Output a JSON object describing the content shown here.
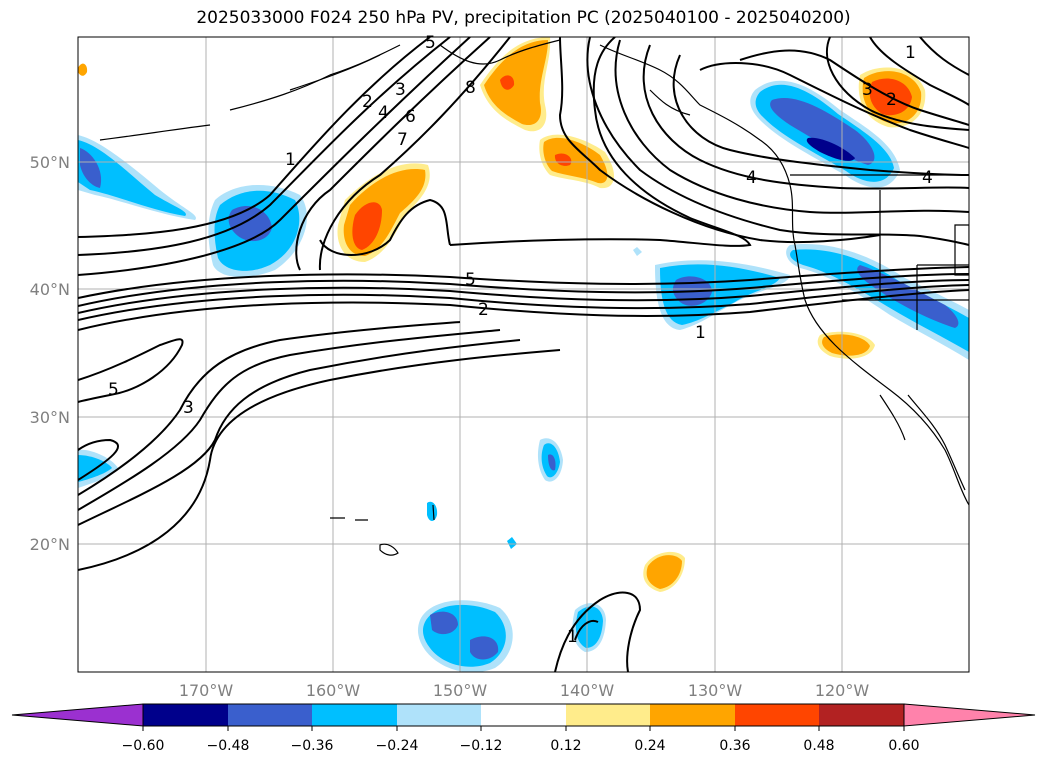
{
  "title": "2025033000 F024 250 hPa PV, precipitation PC (2025040100 - 2025040200)",
  "lat_labels": [
    "50°N",
    "40°N",
    "30°N",
    "20°N"
  ],
  "lon_labels": [
    "170°W",
    "160°W",
    "150°W",
    "140°W",
    "130°W",
    "120°W"
  ],
  "contour_labels": [
    "1",
    "2",
    "3",
    "4",
    "5",
    "6",
    "7",
    "8",
    "5",
    "2",
    "1",
    "5",
    "3",
    "1",
    "4",
    "3",
    "2",
    "1",
    "4"
  ],
  "colorbar": {
    "ticks": [
      "−0.60",
      "−0.48",
      "−0.36",
      "−0.24",
      "−0.12",
      "0.12",
      "0.24",
      "0.36",
      "0.48",
      "0.60"
    ],
    "colors": [
      "#9b30d0",
      "#00008b",
      "#3a5fcd",
      "#00bfff",
      "#afe2fa",
      "#ffffff",
      "#ffec8b",
      "#ffa500",
      "#ff4500",
      "#b22222",
      "#ff82ab"
    ]
  }
}
